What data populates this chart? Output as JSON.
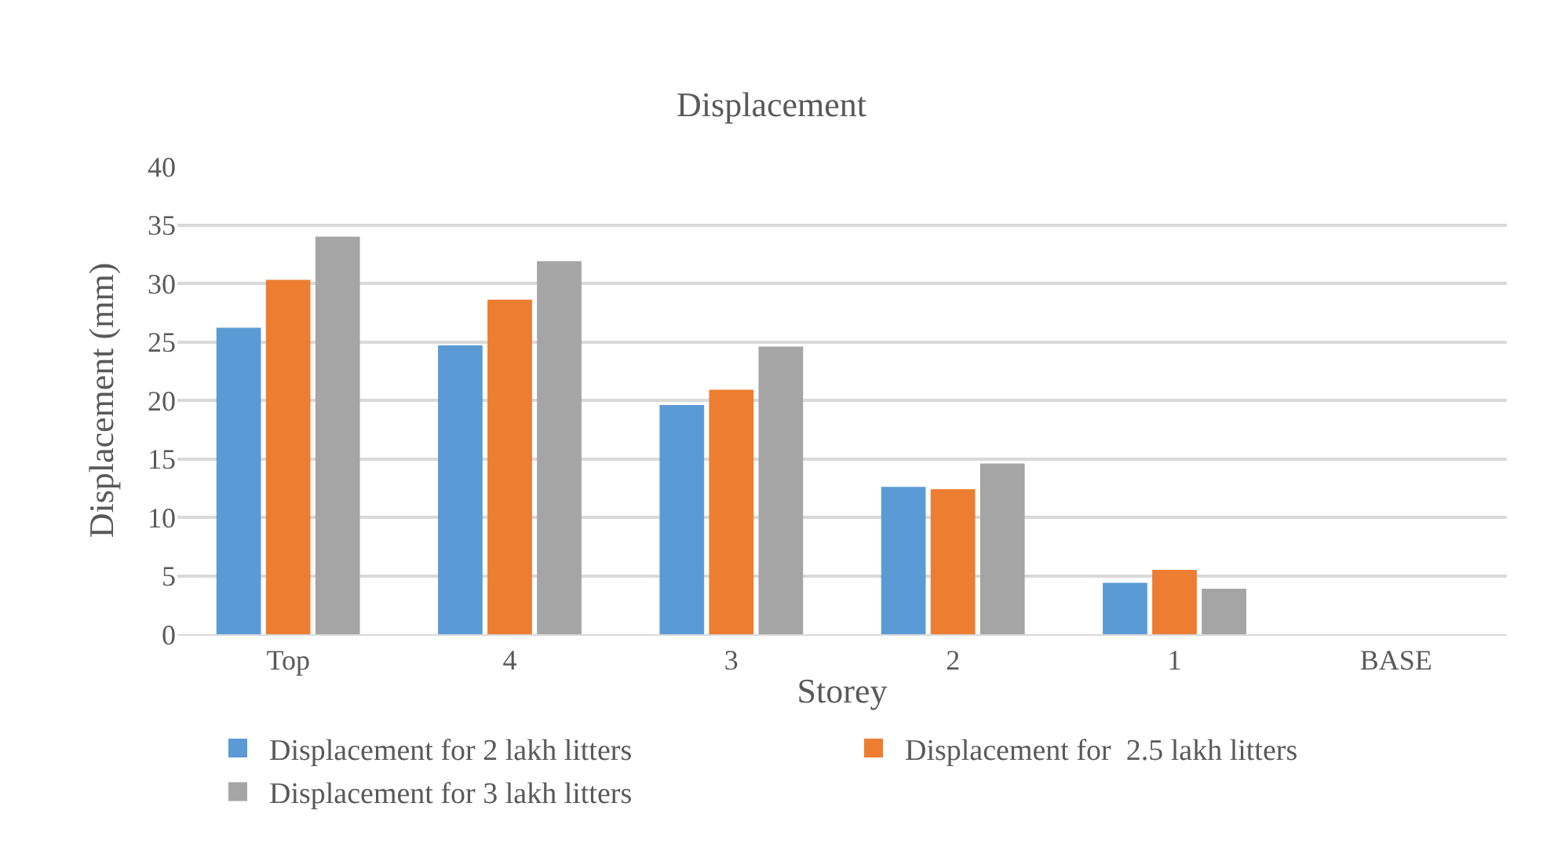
{
  "chart_data": {
    "type": "bar",
    "title": "Displacement",
    "xlabel": "Storey",
    "ylabel": "Displacement (mm)",
    "categories": [
      "Top",
      "4",
      "3",
      "2",
      "1",
      "BASE"
    ],
    "series": [
      {
        "name": "Displacement for 2 lakh litters",
        "color": "#5b9bd5",
        "values": [
          26.2,
          24.7,
          19.6,
          12.6,
          4.4,
          0
        ]
      },
      {
        "name": "Displacement for  2.5 lakh litters",
        "color": "#ed7d31",
        "values": [
          30.3,
          28.6,
          20.9,
          12.4,
          5.5,
          0
        ]
      },
      {
        "name": "Displacement for 3 lakh litters",
        "color": "#a5a5a5",
        "values": [
          34.0,
          31.9,
          24.6,
          14.6,
          3.9,
          0
        ]
      }
    ],
    "ylim": [
      0,
      40
    ],
    "yticks": [
      0,
      5,
      10,
      15,
      20,
      25,
      30,
      35,
      40
    ],
    "grid": "y",
    "legend": "bottom"
  }
}
